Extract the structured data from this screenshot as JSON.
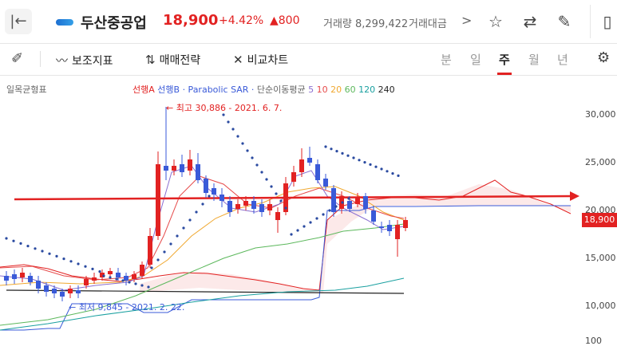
{
  "header": {
    "back_icon": "back-arrow-icon",
    "stock_name": "두산중공업",
    "price": "18,900",
    "change_pct": "+4.42%",
    "change_amt": "▲800",
    "volume": "거래량 8,299,422",
    "amount_label": "거래대금",
    "more": ">",
    "icons": [
      "star-icon",
      "swap-icon",
      "edit-icon",
      "panel-icon"
    ]
  },
  "toolbar": {
    "draw_icon": "pen-icon",
    "indicators_label": "보조지표",
    "strategy_label": "매매전략",
    "compare_label": "비교차트",
    "periods": [
      "분",
      "일",
      "주",
      "월",
      "년"
    ],
    "active_period": "주",
    "settings_icon": "gear-icon"
  },
  "legend": {
    "main_indicator": "일목균형표",
    "span_a": "선행A",
    "span_b": "선행B",
    "sar": "· Parabolic SAR ·",
    "ma_label": "단순이동평균",
    "ma_5": "5",
    "ma_10": "10",
    "ma_20": "20",
    "ma_60": "60",
    "ma_120": "120",
    "ma_240": "240"
  },
  "annotations": {
    "high": "← 최고 30,886 - 2021. 6. 7.",
    "low": "← 최저 9,845 - 2021. 2. 22."
  },
  "price_axis": {
    "labels": [
      "30,000",
      "25,000",
      "20,000",
      "15,000",
      "10,000",
      "100"
    ],
    "current": "18,900"
  },
  "colors": {
    "up": "#e22222",
    "down": "#3a5ad8",
    "ma5": "#8a6fd1",
    "ma10": "#e64a4a",
    "ma20": "#f0a830",
    "ma60": "#5cb85c",
    "ma120": "#1aa0a0",
    "ma240": "#222222"
  }
}
